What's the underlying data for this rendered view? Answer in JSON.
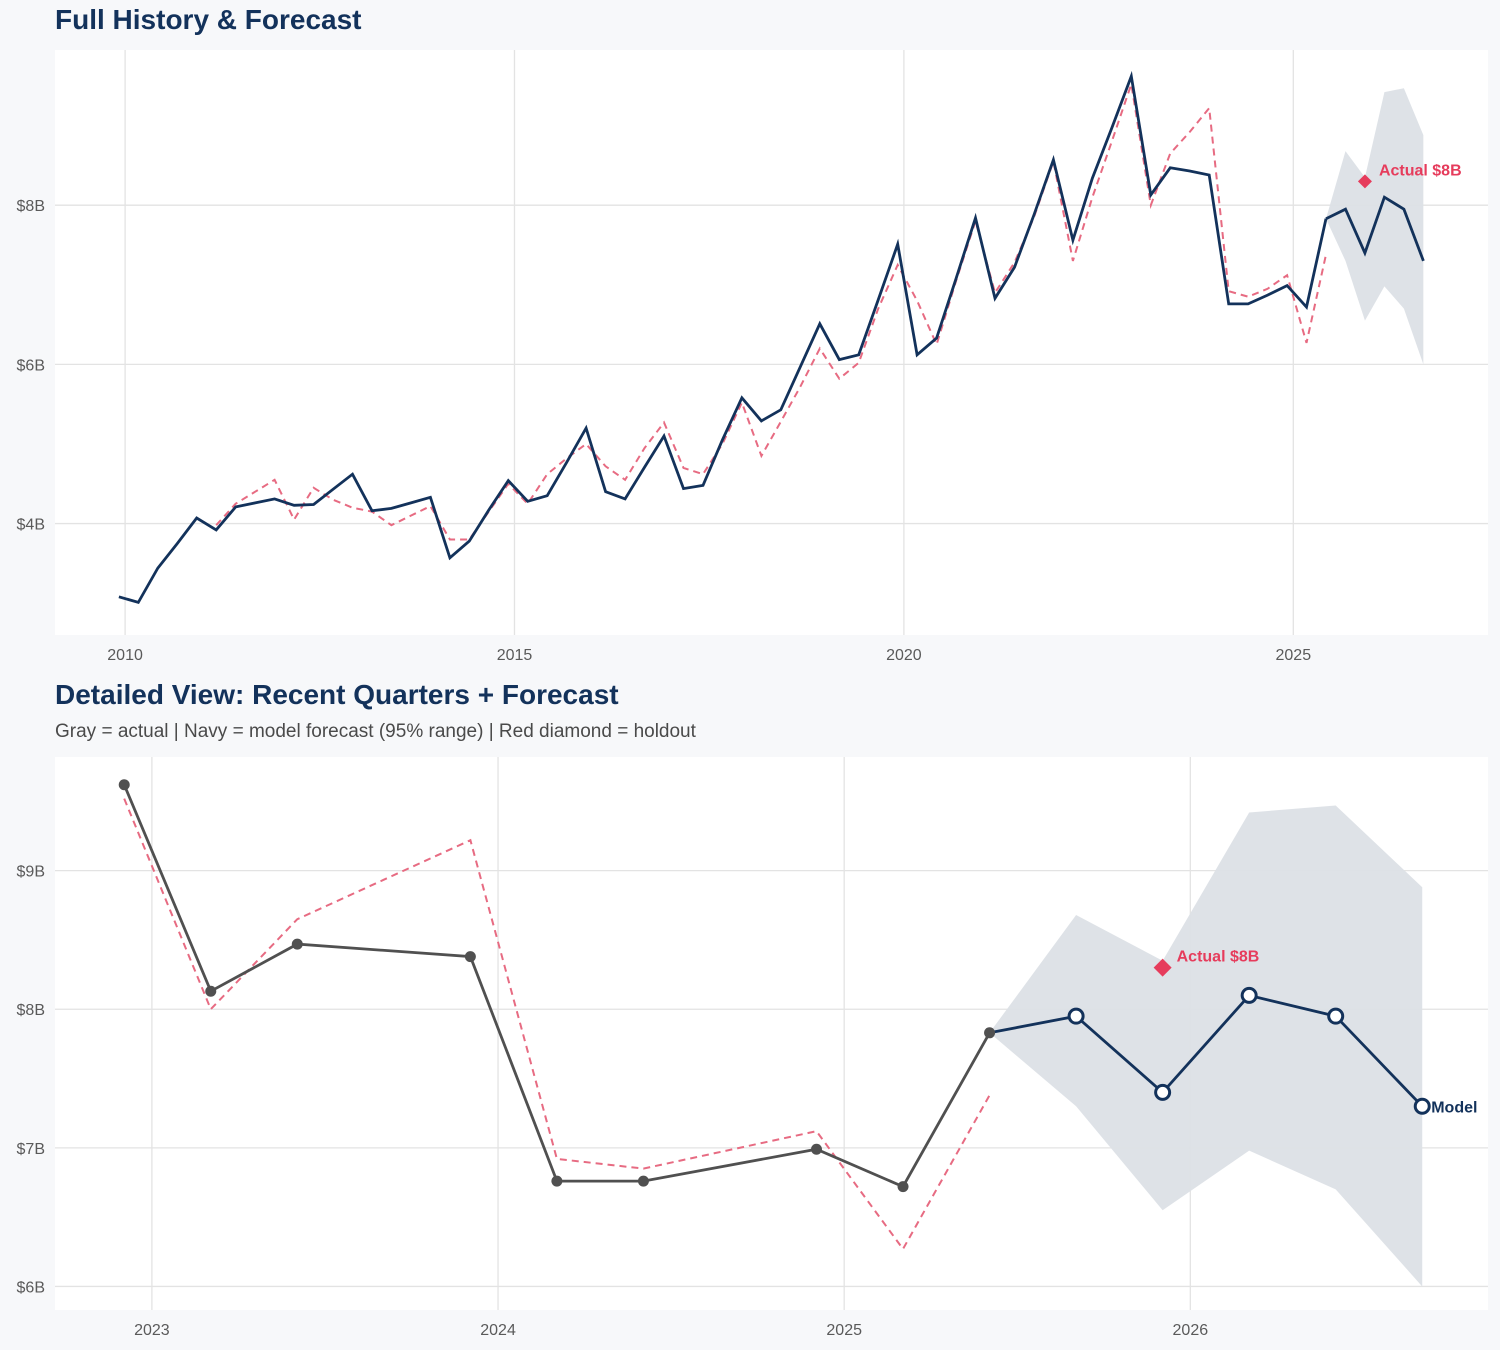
{
  "chart_data": [
    {
      "type": "line",
      "title": "Full History & Forecast",
      "x_ticks": [
        "2010",
        "2015",
        "2020",
        "2025"
      ],
      "y_ticks": [
        "$4B",
        "$6B",
        "$8B"
      ],
      "ylim": [
        2.6,
        9.95
      ],
      "xlim": [
        2009.1,
        2027.5
      ],
      "grid": true,
      "series": [
        {
          "role": "history",
          "color": "#13325b",
          "x": [
            2009.92,
            2010.17,
            2010.42,
            2010.67,
            2010.92,
            2011.17,
            2011.42,
            2011.67,
            2011.92,
            2012.17,
            2012.42,
            2012.67,
            2012.92,
            2013.17,
            2013.42,
            2013.67,
            2013.92,
            2014.17,
            2014.42,
            2014.67,
            2014.92,
            2015.17,
            2015.42,
            2015.67,
            2015.92,
            2016.17,
            2016.42,
            2016.67,
            2016.92,
            2017.17,
            2017.42,
            2017.67,
            2017.92,
            2018.17,
            2018.42,
            2018.67,
            2018.92,
            2019.17,
            2019.42,
            2019.67,
            2019.92,
            2020.17,
            2020.42,
            2020.67,
            2020.92,
            2021.17,
            2021.42,
            2021.67,
            2021.92,
            2022.17,
            2022.42,
            2022.67,
            2022.92,
            2023.17,
            2023.42,
            2023.67,
            2023.92,
            2024.17,
            2024.42,
            2024.67,
            2024.92,
            2025.17,
            2025.42
          ],
          "values": [
            3.08,
            3.01,
            3.44,
            3.75,
            4.07,
            3.92,
            4.21,
            4.26,
            4.31,
            4.23,
            4.24,
            4.43,
            4.62,
            4.16,
            4.19,
            4.26,
            4.33,
            3.57,
            3.78,
            4.17,
            4.54,
            4.28,
            4.35,
            4.77,
            5.2,
            4.4,
            4.31,
            4.71,
            5.1,
            4.44,
            4.48,
            5.05,
            5.58,
            5.29,
            5.43,
            5.97,
            6.51,
            6.06,
            6.12,
            6.81,
            7.51,
            6.12,
            6.33,
            7.08,
            7.84,
            6.83,
            7.22,
            7.88,
            8.57,
            7.56,
            8.34,
            8.97,
            9.62,
            8.13,
            8.47,
            8.43,
            8.38,
            6.76,
            6.76,
            6.87,
            6.99,
            6.72,
            7.83
          ]
        },
        {
          "role": "forecast",
          "color": "#13325b",
          "x": [
            2025.42,
            2025.67,
            2025.92,
            2026.17,
            2026.42,
            2026.67
          ],
          "values": [
            7.83,
            7.95,
            7.4,
            8.1,
            7.95,
            7.3
          ]
        },
        {
          "role": "fitted",
          "color": "#e76b82",
          "style": "dashed",
          "x": [
            2011.17,
            2011.42,
            2011.67,
            2011.92,
            2012.17,
            2012.42,
            2012.67,
            2012.92,
            2013.17,
            2013.42,
            2013.67,
            2013.92,
            2014.17,
            2014.42,
            2014.67,
            2014.92,
            2015.17,
            2015.42,
            2015.67,
            2015.92,
            2016.17,
            2016.42,
            2016.67,
            2016.92,
            2017.17,
            2017.42,
            2017.67,
            2017.92,
            2018.17,
            2018.42,
            2018.67,
            2018.92,
            2019.17,
            2019.42,
            2019.67,
            2019.92,
            2020.17,
            2020.42,
            2020.67,
            2020.92,
            2021.17,
            2021.42,
            2021.67,
            2021.92,
            2022.17,
            2022.42,
            2022.67,
            2022.92,
            2023.17,
            2023.42,
            2023.67,
            2023.92,
            2024.17,
            2024.42,
            2024.67,
            2024.92,
            2025.17,
            2025.42
          ],
          "values": [
            3.98,
            4.25,
            4.4,
            4.55,
            4.05,
            4.45,
            4.3,
            4.2,
            4.15,
            3.98,
            4.1,
            4.22,
            3.8,
            3.8,
            4.15,
            4.5,
            4.25,
            4.62,
            4.82,
            5.0,
            4.72,
            4.55,
            4.95,
            5.27,
            4.7,
            4.62,
            5.0,
            5.52,
            4.85,
            5.28,
            5.72,
            6.2,
            5.82,
            6.02,
            6.7,
            7.25,
            6.8,
            6.25,
            7.05,
            7.8,
            6.9,
            7.28,
            7.85,
            8.55,
            7.3,
            8.1,
            8.8,
            9.52,
            8.0,
            8.65,
            8.92,
            9.22,
            6.92,
            6.85,
            6.95,
            7.12,
            6.27,
            7.38
          ]
        }
      ],
      "band": {
        "color": "#dce0e6",
        "x": [
          2025.42,
          2025.67,
          2025.92,
          2026.17,
          2026.42,
          2026.67
        ],
        "upper": [
          7.83,
          8.68,
          8.35,
          9.42,
          9.47,
          8.88
        ],
        "lower": [
          7.83,
          7.3,
          6.55,
          6.98,
          6.7,
          6.0
        ]
      },
      "holdout": {
        "x": 2025.92,
        "value": 8.3,
        "label": "Actual $8B",
        "color": "#e63c5c"
      }
    },
    {
      "type": "line",
      "title": "Detailed View: Recent Quarters + Forecast",
      "subtitle": "Gray = actual  |  Navy = model forecast (95% range)  |  Red diamond = holdout",
      "x_ticks": [
        "2023",
        "2024",
        "2025",
        "2026"
      ],
      "y_ticks": [
        "$6B",
        "$7B",
        "$8B",
        "$9B"
      ],
      "ylim": [
        5.83,
        9.82
      ],
      "xlim": [
        2022.72,
        2026.86
      ],
      "grid": true,
      "series": [
        {
          "role": "actual",
          "color": "#505050",
          "x": [
            2022.92,
            2023.17,
            2023.42,
            2023.92,
            2024.17,
            2024.42,
            2024.92,
            2025.17,
            2025.42
          ],
          "values": [
            9.62,
            8.13,
            8.47,
            8.38,
            6.76,
            6.76,
            6.99,
            6.72,
            7.83
          ]
        },
        {
          "role": "forecast",
          "color": "#13325b",
          "label": "Model",
          "x": [
            2025.42,
            2025.67,
            2025.92,
            2026.17,
            2026.42,
            2026.67
          ],
          "values": [
            7.83,
            7.95,
            7.4,
            8.1,
            7.95,
            7.3
          ]
        },
        {
          "role": "fitted",
          "color": "#e76b82",
          "style": "dashed",
          "x": [
            2022.92,
            2023.17,
            2023.42,
            2023.92,
            2024.17,
            2024.42,
            2024.92,
            2025.17,
            2025.42
          ],
          "values": [
            9.52,
            8.0,
            8.65,
            9.22,
            6.92,
            6.85,
            7.12,
            6.27,
            7.38
          ]
        }
      ],
      "band": {
        "color": "#dce0e6",
        "x": [
          2025.42,
          2025.67,
          2025.92,
          2026.17,
          2026.42,
          2026.67
        ],
        "upper": [
          7.83,
          8.68,
          8.35,
          9.42,
          9.47,
          8.88
        ],
        "lower": [
          7.83,
          7.3,
          6.55,
          6.98,
          6.7,
          6.0
        ]
      },
      "holdout": {
        "x": 2025.92,
        "value": 8.3,
        "label": "Actual $8B",
        "color": "#e63c5c"
      }
    }
  ]
}
